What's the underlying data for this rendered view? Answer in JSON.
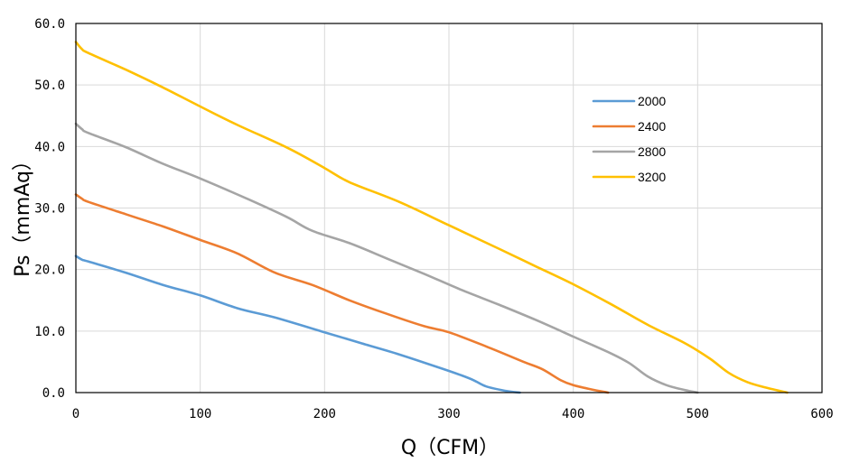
{
  "chart_data": {
    "type": "line",
    "title": "",
    "xlabel": "Q（CFM）",
    "ylabel": "Ps（mmAq）",
    "xlim": [
      0,
      600
    ],
    "ylim": [
      0,
      60
    ],
    "xticks": [
      0,
      100,
      200,
      300,
      400,
      500,
      600
    ],
    "yticks": [
      0,
      10,
      20,
      30,
      40,
      50,
      60
    ],
    "xtick_labels": [
      "0",
      "100",
      "200",
      "300",
      "400",
      "500",
      "600"
    ],
    "ytick_labels": [
      "0.0",
      "10.0",
      "20.0",
      "30.0",
      "40.0",
      "50.0",
      "60.0"
    ],
    "grid": true,
    "legend_position": "top-right",
    "series": [
      {
        "name": "2000",
        "color": "#5B9BD5",
        "points": [
          [
            0,
            22.2
          ],
          [
            5,
            21.6
          ],
          [
            10,
            21.3
          ],
          [
            40,
            19.5
          ],
          [
            70,
            17.5
          ],
          [
            100,
            15.8
          ],
          [
            130,
            13.7
          ],
          [
            160,
            12.2
          ],
          [
            200,
            9.8
          ],
          [
            230,
            8.0
          ],
          [
            260,
            6.2
          ],
          [
            290,
            4.2
          ],
          [
            310,
            2.8
          ],
          [
            320,
            2.0
          ],
          [
            330,
            1.0
          ],
          [
            345,
            0.3
          ],
          [
            357,
            0
          ]
        ]
      },
      {
        "name": "2400",
        "color": "#ED7D31",
        "points": [
          [
            0,
            32.2
          ],
          [
            5,
            31.5
          ],
          [
            10,
            31.0
          ],
          [
            40,
            29.0
          ],
          [
            70,
            27.0
          ],
          [
            100,
            24.8
          ],
          [
            130,
            22.6
          ],
          [
            160,
            19.5
          ],
          [
            190,
            17.5
          ],
          [
            220,
            15.0
          ],
          [
            250,
            12.8
          ],
          [
            280,
            10.8
          ],
          [
            300,
            9.8
          ],
          [
            330,
            7.5
          ],
          [
            360,
            5.0
          ],
          [
            375,
            3.8
          ],
          [
            390,
            2.0
          ],
          [
            400,
            1.2
          ],
          [
            415,
            0.5
          ],
          [
            428,
            0
          ]
        ]
      },
      {
        "name": "2800",
        "color": "#A5A5A5",
        "points": [
          [
            0,
            43.7
          ],
          [
            5,
            42.8
          ],
          [
            10,
            42.2
          ],
          [
            40,
            39.9
          ],
          [
            70,
            37.2
          ],
          [
            100,
            34.8
          ],
          [
            140,
            31.3
          ],
          [
            170,
            28.5
          ],
          [
            190,
            26.3
          ],
          [
            220,
            24.3
          ],
          [
            250,
            21.8
          ],
          [
            280,
            19.3
          ],
          [
            310,
            16.7
          ],
          [
            340,
            14.3
          ],
          [
            370,
            11.8
          ],
          [
            400,
            9.1
          ],
          [
            430,
            6.4
          ],
          [
            445,
            4.8
          ],
          [
            460,
            2.6
          ],
          [
            475,
            1.2
          ],
          [
            490,
            0.4
          ],
          [
            500,
            0
          ]
        ]
      },
      {
        "name": "3200",
        "color": "#FFC000",
        "points": [
          [
            0,
            57.0
          ],
          [
            5,
            55.8
          ],
          [
            10,
            55.2
          ],
          [
            40,
            52.5
          ],
          [
            70,
            49.6
          ],
          [
            100,
            46.5
          ],
          [
            130,
            43.5
          ],
          [
            170,
            39.8
          ],
          [
            200,
            36.5
          ],
          [
            220,
            34.2
          ],
          [
            260,
            31.0
          ],
          [
            300,
            27.2
          ],
          [
            340,
            23.4
          ],
          [
            370,
            20.5
          ],
          [
            400,
            17.6
          ],
          [
            430,
            14.4
          ],
          [
            460,
            11.0
          ],
          [
            490,
            8.0
          ],
          [
            510,
            5.5
          ],
          [
            525,
            3.2
          ],
          [
            540,
            1.7
          ],
          [
            555,
            0.8
          ],
          [
            572,
            0
          ]
        ]
      }
    ]
  }
}
